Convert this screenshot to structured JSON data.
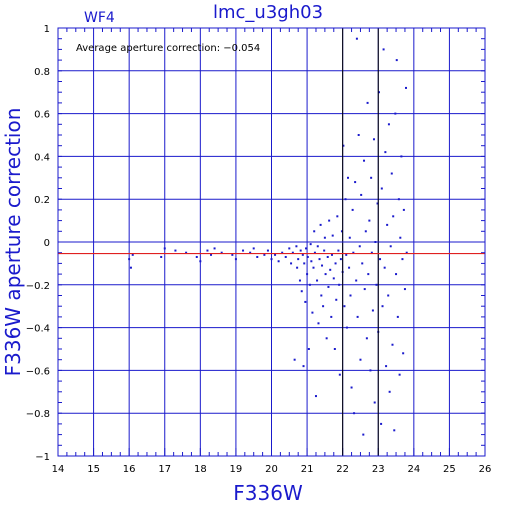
{
  "chart_data": {
    "type": "scatter",
    "title": "lmc_u3gh03",
    "chip_label": "WF4",
    "annotation": "Average aperture correction: −0.054",
    "xlabel": "F336W",
    "ylabel": "F336W aperture correction",
    "xlim": [
      14,
      26
    ],
    "ylim": [
      -1,
      1
    ],
    "x_ticks": [
      "14",
      "15",
      "16",
      "17",
      "18",
      "19",
      "20",
      "21",
      "22",
      "23",
      "24",
      "25",
      "26"
    ],
    "y_ticks": [
      "−1",
      "−0.8",
      "−0.6",
      "−0.4",
      "−0.2",
      "0",
      "0.2",
      "0.4",
      "0.6",
      "0.8",
      "1"
    ],
    "grid": true,
    "reference_line_y": -0.054,
    "colors": {
      "axes": "#1a1acc",
      "points": "#1a1acc",
      "reference": "#e02020",
      "black_lines": "#000000"
    },
    "vertical_black_lines_x": [
      22,
      23
    ],
    "horizontal_line_y": 0,
    "points": [
      [
        16.0,
        -0.08
      ],
      [
        16.05,
        -0.12
      ],
      [
        16.1,
        -0.06
      ],
      [
        16.9,
        -0.07
      ],
      [
        17.0,
        -0.03
      ],
      [
        17.3,
        -0.04
      ],
      [
        17.6,
        -0.05
      ],
      [
        17.9,
        -0.07
      ],
      [
        18.0,
        -0.09
      ],
      [
        18.2,
        -0.04
      ],
      [
        18.3,
        -0.06
      ],
      [
        18.4,
        -0.03
      ],
      [
        18.6,
        -0.05
      ],
      [
        18.9,
        -0.06
      ],
      [
        19.0,
        -0.08
      ],
      [
        19.2,
        -0.04
      ],
      [
        19.4,
        -0.05
      ],
      [
        19.5,
        -0.03
      ],
      [
        19.6,
        -0.07
      ],
      [
        19.8,
        -0.06
      ],
      [
        19.9,
        -0.04
      ],
      [
        20.0,
        -0.08
      ],
      [
        20.1,
        -0.06
      ],
      [
        20.2,
        -0.09
      ],
      [
        20.3,
        -0.05
      ],
      [
        20.4,
        -0.07
      ],
      [
        20.5,
        -0.03
      ],
      [
        20.55,
        -0.1
      ],
      [
        20.6,
        -0.05
      ],
      [
        20.65,
        -0.55
      ],
      [
        20.7,
        -0.02
      ],
      [
        20.72,
        -0.12
      ],
      [
        20.75,
        -0.08
      ],
      [
        20.8,
        -0.18
      ],
      [
        20.82,
        -0.04
      ],
      [
        20.85,
        -0.23
      ],
      [
        20.88,
        -0.06
      ],
      [
        20.9,
        -0.58
      ],
      [
        20.92,
        -0.1
      ],
      [
        20.95,
        -0.28
      ],
      [
        20.97,
        -0.03
      ],
      [
        21.0,
        -0.15
      ],
      [
        21.02,
        -0.07
      ],
      [
        21.05,
        -0.5
      ],
      [
        21.08,
        -0.2
      ],
      [
        21.1,
        -0.01
      ],
      [
        21.12,
        -0.09
      ],
      [
        21.15,
        -0.33
      ],
      [
        21.18,
        -0.12
      ],
      [
        21.2,
        0.05
      ],
      [
        21.22,
        -0.05
      ],
      [
        21.25,
        -0.72
      ],
      [
        21.28,
        -0.18
      ],
      [
        21.3,
        -0.02
      ],
      [
        21.32,
        -0.38
      ],
      [
        21.35,
        -0.08
      ],
      [
        21.38,
        0.08
      ],
      [
        21.4,
        -0.25
      ],
      [
        21.42,
        -0.11
      ],
      [
        21.45,
        -0.3
      ],
      [
        21.48,
        -0.04
      ],
      [
        21.5,
        0.02
      ],
      [
        21.52,
        -0.15
      ],
      [
        21.55,
        -0.45
      ],
      [
        21.58,
        -0.07
      ],
      [
        21.6,
        -0.21
      ],
      [
        21.62,
        0.1
      ],
      [
        21.65,
        -0.13
      ],
      [
        21.68,
        -0.35
      ],
      [
        21.7,
        -0.06
      ],
      [
        21.72,
        0.03
      ],
      [
        21.75,
        -0.17
      ],
      [
        21.78,
        -0.5
      ],
      [
        21.8,
        -0.1
      ],
      [
        21.82,
        -0.27
      ],
      [
        21.85,
        0.12
      ],
      [
        21.88,
        -0.04
      ],
      [
        21.9,
        -0.2
      ],
      [
        21.92,
        -0.62
      ],
      [
        21.95,
        -0.08
      ],
      [
        21.98,
        0.05
      ],
      [
        22.0,
        -0.14
      ],
      [
        22.02,
        0.45
      ],
      [
        22.05,
        -0.3
      ],
      [
        22.08,
        0.2
      ],
      [
        22.1,
        -0.06
      ],
      [
        22.12,
        -0.4
      ],
      [
        22.15,
        0.3
      ],
      [
        22.18,
        -0.12
      ],
      [
        22.2,
        0.02
      ],
      [
        22.22,
        -0.25
      ],
      [
        22.25,
        -0.68
      ],
      [
        22.28,
        0.15
      ],
      [
        22.3,
        -0.05
      ],
      [
        22.32,
        -0.8
      ],
      [
        22.35,
        0.28
      ],
      [
        22.38,
        -0.18
      ],
      [
        22.4,
        0.95
      ],
      [
        22.42,
        -0.35
      ],
      [
        22.45,
        0.5
      ],
      [
        22.48,
        -0.02
      ],
      [
        22.5,
        -0.55
      ],
      [
        22.52,
        0.22
      ],
      [
        22.55,
        -0.1
      ],
      [
        22.58,
        -0.9
      ],
      [
        22.6,
        0.38
      ],
      [
        22.62,
        -0.22
      ],
      [
        22.65,
        0.05
      ],
      [
        22.68,
        -0.45
      ],
      [
        22.7,
        0.65
      ],
      [
        22.72,
        -0.15
      ],
      [
        22.75,
        0.1
      ],
      [
        22.78,
        -0.6
      ],
      [
        22.8,
        0.3
      ],
      [
        22.82,
        -0.05
      ],
      [
        22.85,
        -0.32
      ],
      [
        22.88,
        0.48
      ],
      [
        22.9,
        -0.75
      ],
      [
        22.92,
        0.0
      ],
      [
        22.95,
        -0.2
      ],
      [
        22.98,
        0.18
      ],
      [
        23.0,
        -0.42
      ],
      [
        23.02,
        0.7
      ],
      [
        23.05,
        -0.08
      ],
      [
        23.08,
        -0.85
      ],
      [
        23.1,
        0.25
      ],
      [
        23.12,
        -0.3
      ],
      [
        23.15,
        0.9
      ],
      [
        23.18,
        -0.12
      ],
      [
        23.2,
        0.42
      ],
      [
        23.22,
        -0.58
      ],
      [
        23.25,
        0.08
      ],
      [
        23.28,
        -0.25
      ],
      [
        23.3,
        0.55
      ],
      [
        23.32,
        -0.7
      ],
      [
        23.35,
        -0.02
      ],
      [
        23.38,
        0.32
      ],
      [
        23.4,
        -0.48
      ],
      [
        23.42,
        0.12
      ],
      [
        23.45,
        -0.88
      ],
      [
        23.48,
        0.6
      ],
      [
        23.5,
        -0.15
      ],
      [
        23.52,
        0.85
      ],
      [
        23.55,
        -0.35
      ],
      [
        23.58,
        0.2
      ],
      [
        23.6,
        -0.62
      ],
      [
        23.62,
        0.02
      ],
      [
        23.65,
        0.4
      ],
      [
        23.68,
        -0.08
      ],
      [
        23.7,
        -0.52
      ],
      [
        23.72,
        0.15
      ],
      [
        23.75,
        -0.22
      ],
      [
        23.78,
        0.72
      ],
      [
        23.8,
        -0.05
      ]
    ]
  }
}
